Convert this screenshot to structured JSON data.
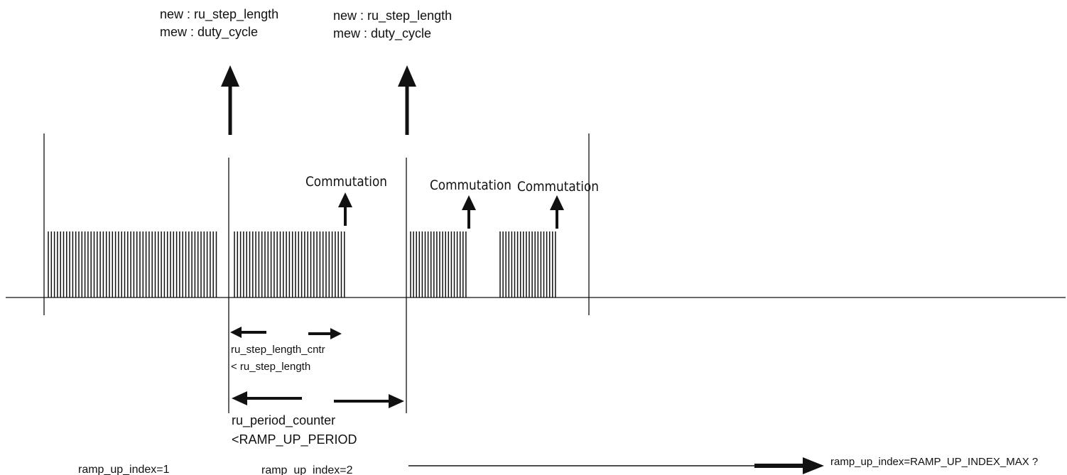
{
  "labels": {
    "new_step_1": "new : ru_step_length",
    "mew_duty_1": "mew : duty_cycle",
    "new_step_2": "new : ru_step_length",
    "mew_duty_2": "mew : duty_cycle",
    "commutation_1": "Commutation",
    "commutation_2": "Commutation",
    "commutation_3": "Commutation",
    "step_cntr_line1": "ru_step_length_cntr",
    "step_cntr_line2": "< ru_step_length",
    "period_line1": "ru_period_counter",
    "period_line2": "<RAMP_UP_PERIOD",
    "index_1": "ramp_up_index=1",
    "index_2": "ramp_up_index=2",
    "index_max": "ramp_up_index=RAMP_UP_INDEX_MAX ?"
  },
  "colors": {
    "ink": "#111111",
    "background": "#ffffff"
  }
}
